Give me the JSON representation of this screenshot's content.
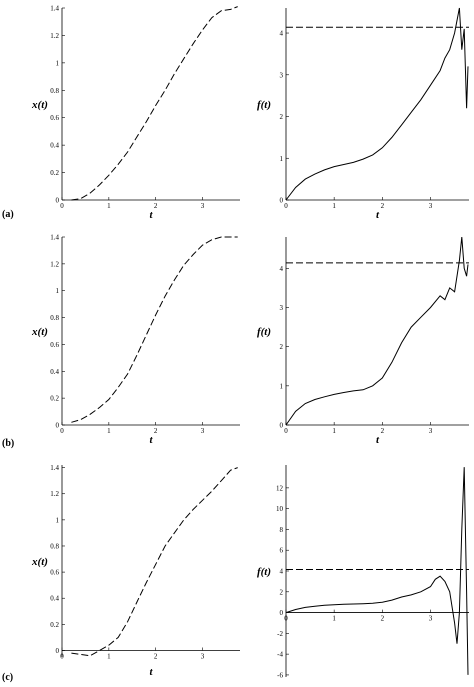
{
  "figure": {
    "rows": [
      {
        "label": "(a)"
      },
      {
        "label": "(b)"
      },
      {
        "label": "(c)"
      }
    ]
  },
  "chart_data": [
    {
      "id": "a-x",
      "type": "line",
      "row": "(a)",
      "xlabel": "t",
      "ylabel": "x(t)",
      "xlim": [
        0,
        3.8
      ],
      "ylim": [
        0,
        1.4
      ],
      "xticks": [
        0,
        1,
        2,
        3
      ],
      "yticks": [
        0,
        0.2,
        0.4,
        0.6,
        0.8,
        1,
        1.2,
        1.4
      ],
      "series": [
        {
          "style": "dashed",
          "x": [
            0.2,
            0.4,
            0.6,
            0.8,
            1.0,
            1.2,
            1.4,
            1.6,
            1.8,
            2.0,
            2.2,
            2.4,
            2.6,
            2.8,
            3.0,
            3.2,
            3.4,
            3.6,
            3.75
          ],
          "y": [
            0,
            0.01,
            0.05,
            0.11,
            0.18,
            0.26,
            0.35,
            0.46,
            0.57,
            0.69,
            0.8,
            0.92,
            1.03,
            1.14,
            1.24,
            1.33,
            1.38,
            1.39,
            1.41
          ]
        }
      ]
    },
    {
      "id": "a-f",
      "type": "line",
      "row": "(a)",
      "xlabel": "t",
      "ylabel": "f(t)",
      "xlim": [
        0,
        3.8
      ],
      "ylim": [
        0,
        4.6
      ],
      "xticks": [
        0,
        1,
        2,
        3
      ],
      "yticks": [
        0,
        1,
        2,
        3,
        4
      ],
      "series": [
        {
          "style": "solid",
          "x": [
            0,
            0.2,
            0.4,
            0.6,
            0.8,
            1.0,
            1.2,
            1.4,
            1.6,
            1.8,
            2.0,
            2.2,
            2.4,
            2.6,
            2.8,
            3.0,
            3.2,
            3.3,
            3.4,
            3.5,
            3.6,
            3.65,
            3.7,
            3.75,
            3.78
          ],
          "y": [
            0,
            0.3,
            0.5,
            0.62,
            0.72,
            0.8,
            0.85,
            0.9,
            0.98,
            1.08,
            1.25,
            1.5,
            1.8,
            2.1,
            2.4,
            2.75,
            3.1,
            3.4,
            3.6,
            4.0,
            4.6,
            3.6,
            4.1,
            2.2,
            3.2
          ]
        },
        {
          "style": "dashed",
          "x": [
            0,
            3.8
          ],
          "y": [
            4.14,
            4.14
          ]
        }
      ]
    },
    {
      "id": "b-x",
      "type": "line",
      "row": "(b)",
      "xlabel": "t",
      "ylabel": "x(t)",
      "xlim": [
        0,
        3.8
      ],
      "ylim": [
        0,
        1.4
      ],
      "xticks": [
        0,
        1,
        2,
        3
      ],
      "yticks": [
        0,
        0.2,
        0.4,
        0.6,
        0.8,
        1,
        1.2,
        1.4
      ],
      "series": [
        {
          "style": "dashed",
          "x": [
            0.2,
            0.4,
            0.6,
            0.8,
            1.0,
            1.2,
            1.4,
            1.6,
            1.8,
            2.0,
            2.2,
            2.4,
            2.6,
            2.8,
            3.0,
            3.2,
            3.4,
            3.6,
            3.75
          ],
          "y": [
            0.02,
            0.04,
            0.08,
            0.13,
            0.19,
            0.28,
            0.38,
            0.52,
            0.67,
            0.82,
            0.96,
            1.08,
            1.19,
            1.27,
            1.34,
            1.38,
            1.4,
            1.4,
            1.4
          ]
        }
      ]
    },
    {
      "id": "b-f",
      "type": "line",
      "row": "(b)",
      "xlabel": "t",
      "ylabel": "f(t)",
      "xlim": [
        0,
        3.8
      ],
      "ylim": [
        0,
        4.8
      ],
      "xticks": [
        0,
        1,
        2,
        3
      ],
      "yticks": [
        0,
        1,
        2,
        3,
        4
      ],
      "series": [
        {
          "style": "solid",
          "x": [
            0,
            0.2,
            0.4,
            0.6,
            0.8,
            1.0,
            1.2,
            1.4,
            1.6,
            1.8,
            2.0,
            2.2,
            2.4,
            2.6,
            2.8,
            3.0,
            3.2,
            3.3,
            3.4,
            3.5,
            3.6,
            3.65,
            3.7,
            3.75,
            3.78
          ],
          "y": [
            0,
            0.35,
            0.55,
            0.65,
            0.72,
            0.78,
            0.83,
            0.87,
            0.9,
            1.0,
            1.2,
            1.6,
            2.1,
            2.5,
            2.75,
            3.0,
            3.3,
            3.2,
            3.5,
            3.4,
            4.2,
            4.8,
            4.0,
            3.8,
            4.1
          ]
        },
        {
          "style": "dashed",
          "x": [
            0,
            3.8
          ],
          "y": [
            4.14,
            4.14
          ]
        }
      ]
    },
    {
      "id": "c-x",
      "type": "line",
      "row": "(c)",
      "xlabel": "t",
      "ylabel": "x(t)",
      "xlim": [
        0,
        3.8
      ],
      "ylim": [
        -0.05,
        1.42
      ],
      "xticks": [
        0,
        1,
        2,
        3
      ],
      "yticks": [
        0,
        0.2,
        0.4,
        0.6,
        0.8,
        1,
        1.2,
        1.4
      ],
      "series": [
        {
          "style": "dashed",
          "x": [
            0.2,
            0.4,
            0.6,
            0.8,
            1.0,
            1.2,
            1.4,
            1.6,
            1.8,
            2.0,
            2.2,
            2.4,
            2.6,
            2.8,
            3.0,
            3.2,
            3.4,
            3.6,
            3.75
          ],
          "y": [
            -0.02,
            -0.03,
            -0.04,
            0.0,
            0.04,
            0.1,
            0.22,
            0.37,
            0.52,
            0.66,
            0.8,
            0.9,
            1.0,
            1.08,
            1.15,
            1.22,
            1.3,
            1.38,
            1.4
          ]
        }
      ]
    },
    {
      "id": "c-f",
      "type": "line",
      "row": "(c)",
      "xlabel": "t",
      "ylabel": "f(t)",
      "xlim": [
        0,
        3.8
      ],
      "ylim": [
        -6.2,
        14.2
      ],
      "xticks": [
        0,
        1,
        2,
        3
      ],
      "yticks": [
        -6,
        -4,
        -2,
        0,
        2,
        4,
        6,
        8,
        10,
        12
      ],
      "series": [
        {
          "style": "solid",
          "x": [
            0,
            0.2,
            0.4,
            0.6,
            0.8,
            1.0,
            1.2,
            1.4,
            1.6,
            1.8,
            2.0,
            2.2,
            2.4,
            2.6,
            2.8,
            3.0,
            3.1,
            3.2,
            3.3,
            3.4,
            3.5,
            3.55,
            3.6,
            3.65,
            3.7,
            3.75,
            3.78
          ],
          "y": [
            0,
            0.3,
            0.5,
            0.6,
            0.7,
            0.75,
            0.8,
            0.82,
            0.85,
            0.9,
            1.0,
            1.2,
            1.5,
            1.7,
            2.0,
            2.5,
            3.2,
            3.5,
            3.0,
            2.0,
            -1.0,
            -3.0,
            0,
            8,
            14,
            2,
            -6
          ]
        },
        {
          "style": "dashed",
          "x": [
            0,
            3.8
          ],
          "y": [
            4.14,
            4.14
          ]
        }
      ]
    }
  ]
}
